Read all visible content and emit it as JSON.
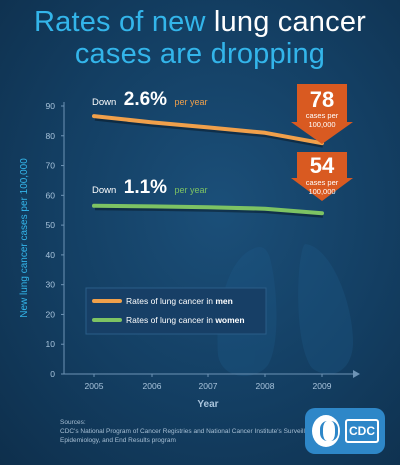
{
  "title": {
    "line1_pre": "Rates of new ",
    "line1_hl": "lung cancer",
    "line2": "cases are dropping"
  },
  "chart_data": {
    "type": "line",
    "x": [
      2005,
      2006,
      2007,
      2008,
      2009
    ],
    "ylim": [
      0,
      90
    ],
    "yticks": [
      0,
      10,
      20,
      30,
      40,
      50,
      60,
      70,
      80,
      90
    ],
    "xlabel": "Year",
    "ylabel": "New lung cancer cases per 100,000",
    "series": [
      {
        "name": "Rates of lung cancer in men",
        "legend_pre": "Rates of lung cancer in ",
        "legend_bold": "men",
        "color": "#f0a04b",
        "values": [
          86.6,
          84.5,
          82.8,
          81.0,
          77.5
        ]
      },
      {
        "name": "Rates of lung cancer in women",
        "legend_pre": "Rates of lung cancer in ",
        "legend_bold": "women",
        "color": "#7dc363",
        "values": [
          56.5,
          56.3,
          56.0,
          55.5,
          54.0
        ]
      }
    ],
    "annotations": {
      "men": {
        "pre": "Down",
        "pct": "2.6%",
        "post": "per year"
      },
      "women": {
        "pre": "Down",
        "pct": "1.1%",
        "post": "per year"
      }
    },
    "callouts": {
      "men": {
        "value": "78",
        "line1": "cases per",
        "line2": "100,000"
      },
      "women": {
        "value": "54",
        "line1": "cases per",
        "line2": "100,000"
      }
    },
    "callout_color": "#d95a21"
  },
  "sources": {
    "heading": "Sources:",
    "text": "CDC's National Program of Cancer Registries and National Cancer Institute's Surveillance, Epidemiology, and End Results program"
  },
  "logo": {
    "text": "CDC"
  }
}
